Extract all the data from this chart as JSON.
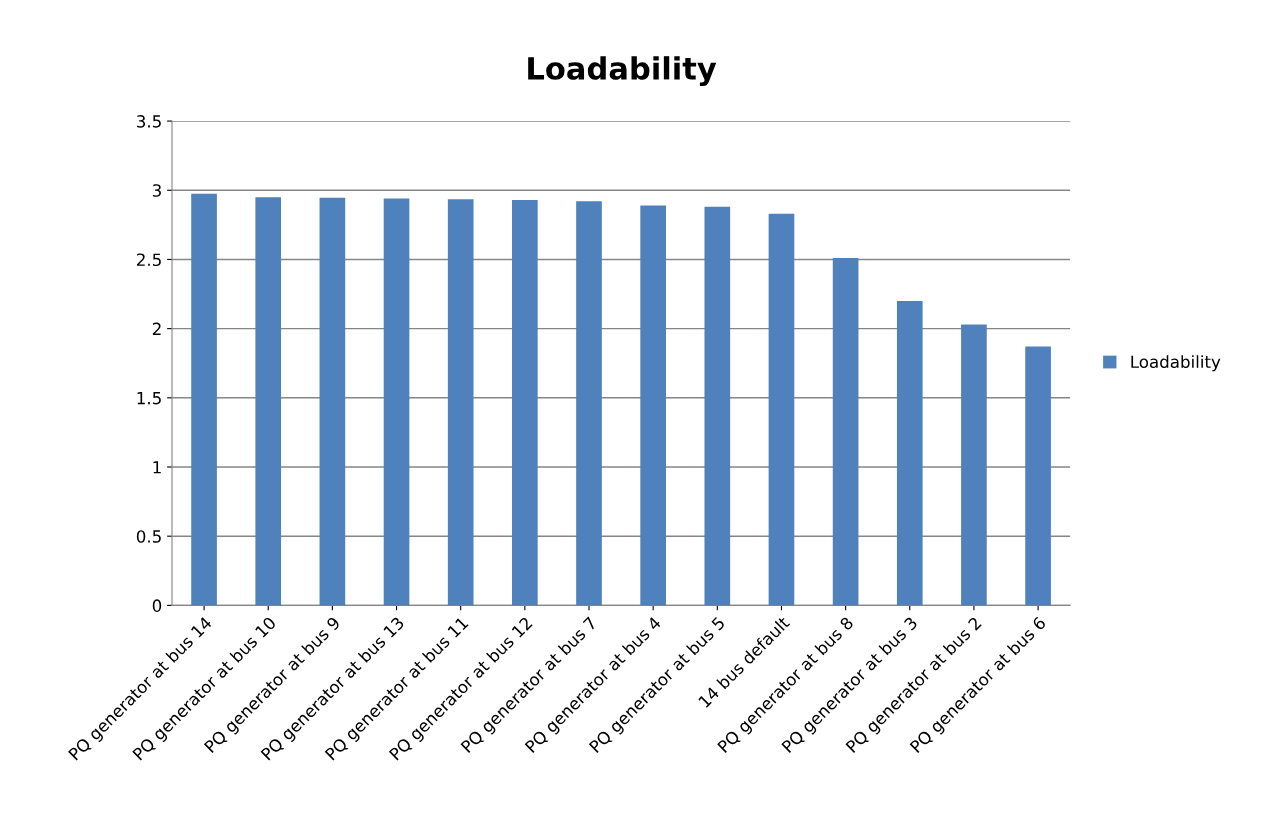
{
  "chart_data": {
    "type": "bar",
    "title": "Loadability",
    "categories": [
      "PQ generator at bus 14",
      "PQ generator at bus 10",
      "PQ generator at bus 9",
      "PQ generator at bus 13",
      "PQ generator at bus 11",
      "PQ generator at bus 12",
      "PQ generator at bus 7",
      "PQ generator at bus 4",
      "PQ generator at bus 5",
      "14 bus default",
      "PQ generator at bus 8",
      "PQ generator at bus 3",
      "PQ generator at bus 2",
      "PQ generator at bus 6"
    ],
    "series": [
      {
        "name": "Loadability",
        "color": "#4f81bd",
        "values": [
          2.975,
          2.95,
          2.945,
          2.94,
          2.935,
          2.93,
          2.92,
          2.89,
          2.88,
          2.83,
          2.51,
          2.2,
          2.03,
          1.87
        ]
      }
    ],
    "ylim": [
      0,
      3.5
    ],
    "yticks": [
      0,
      0.5,
      1,
      1.5,
      2,
      2.5,
      3,
      3.5
    ],
    "grid": "y",
    "legend": "right"
  }
}
